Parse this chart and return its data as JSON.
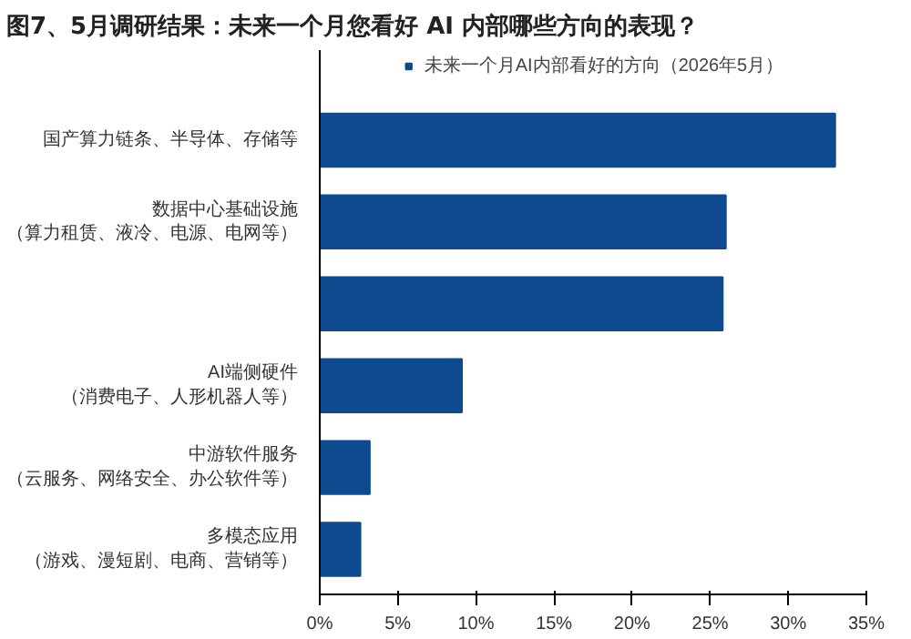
{
  "chart_data": {
    "type": "bar",
    "orientation": "horizontal",
    "title": "图7、5月调研结果：未来一个月您看好 AI 内部哪些方向的表现？",
    "categories": [
      "国产算力链条、半导体、存储等",
      "数据中心基础设施（算力租赁、液冷、电源、电网等）",
      null,
      "AI端侧硬件（消费电子、人形机器人等）",
      "中游软件服务（云服务、网络安全、办公软件等）",
      "多模态应用（游戏、漫短剧、电商、营销等）"
    ],
    "series": [
      {
        "name": "未来一个月AI内部看好的方向（2026年5月）",
        "color": "#0d4a8f",
        "values": [
          33.0,
          26.0,
          25.8,
          9.1,
          3.2,
          2.6
        ]
      }
    ],
    "xlim": [
      0,
      35
    ],
    "xticks": [
      {
        "value": 0,
        "label": "0%"
      },
      {
        "value": 5,
        "label": "5%"
      },
      {
        "value": 10,
        "label": "10%"
      },
      {
        "value": 15,
        "label": "15%"
      },
      {
        "value": 20,
        "label": "20%"
      },
      {
        "value": 25,
        "label": "25%"
      },
      {
        "value": 30,
        "label": "30%"
      },
      {
        "value": 35,
        "label": "35%"
      }
    ],
    "grid": false,
    "legend": "top"
  }
}
